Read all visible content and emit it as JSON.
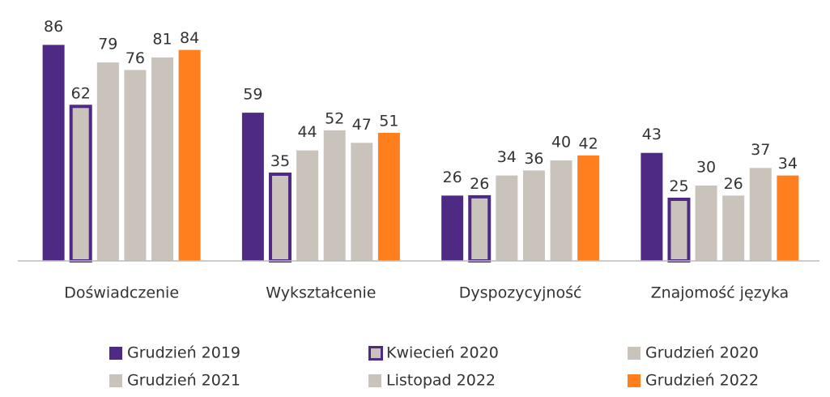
{
  "chart_data": {
    "type": "bar",
    "categories": [
      "Doświadczenie",
      "Wykształcenie",
      "Dyspozycyjność",
      "Znajomość języka"
    ],
    "series": [
      {
        "name": "Grudzień 2019",
        "color": "#4e2a84",
        "values": [
          86,
          59,
          26,
          43
        ]
      },
      {
        "name": "Kwiecień 2020",
        "color": "#c9c3bc",
        "edgecolor": "#4e2a84",
        "values": [
          62,
          35,
          26,
          25
        ]
      },
      {
        "name": "Grudzień 2020",
        "color": "#c9c3bc",
        "values": [
          79,
          44,
          34,
          30
        ]
      },
      {
        "name": "Grudzień 2021",
        "color": "#c9c3bc",
        "values": [
          76,
          52,
          36,
          26
        ]
      },
      {
        "name": "Listopad 2022",
        "color": "#c9c3bc",
        "values": [
          81,
          47,
          40,
          37
        ]
      },
      {
        "name": "Grudzień 2022",
        "color": "#ff7f1e",
        "values": [
          84,
          51,
          42,
          34
        ]
      }
    ],
    "ylim": [
      0,
      100
    ]
  }
}
